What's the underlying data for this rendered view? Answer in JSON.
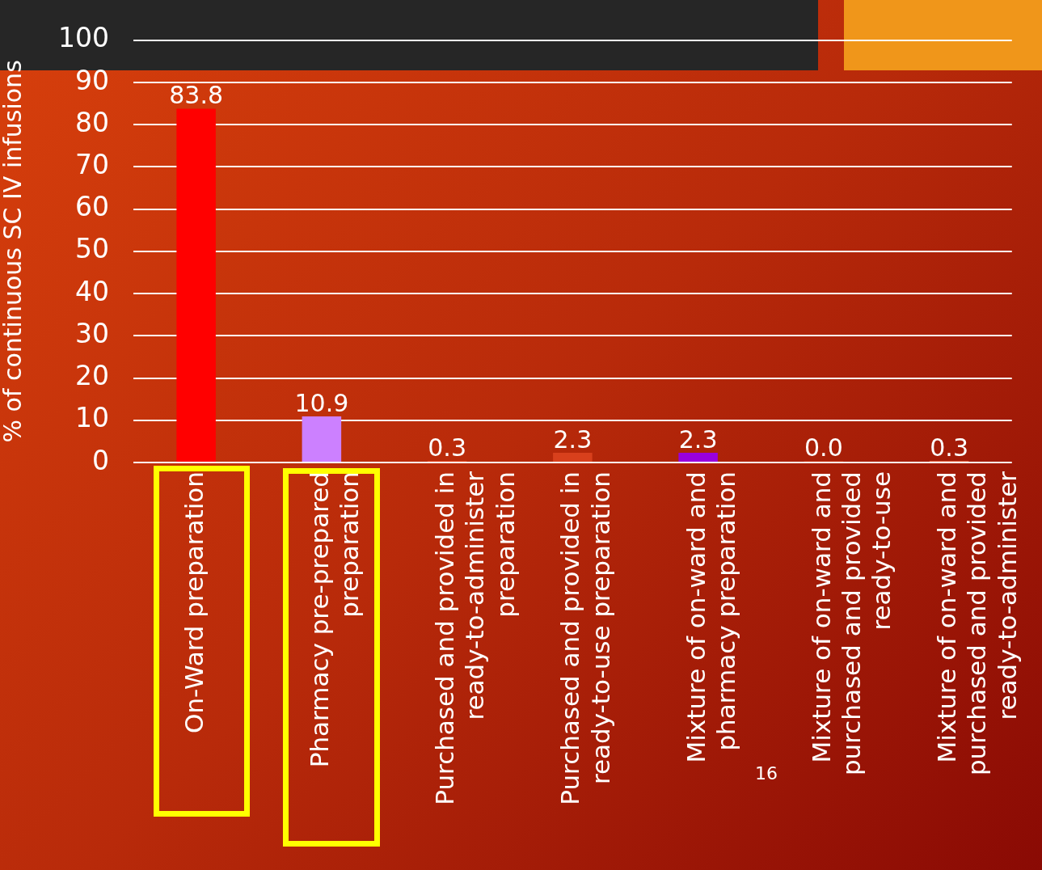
{
  "chart_data": {
    "type": "bar",
    "ylabel": "% of continuous SC IV infusions",
    "categories": [
      "On-Ward preparation",
      "Pharmacy pre-prepared preparation",
      "Purchased and provided in ready-to-administer preparation",
      "Purchased and provided in ready-to-use preparation",
      "Mixture of on-ward and pharmacy preparation",
      "Mixture of on-ward and purchased and provided ready-to-use",
      "Mixture of on-ward and purchased and provided ready-to-administer"
    ],
    "values": [
      83.8,
      10.9,
      0.3,
      2.3,
      2.3,
      0.0,
      0.3
    ],
    "colors": [
      "#ff0000",
      "#cc80ff",
      "#e0401a",
      "#d8401c",
      "#9900dd",
      "#c03010",
      "#e06040"
    ],
    "value_labels": [
      "83.8",
      "10.9",
      "0.3",
      "2.3",
      "2.3",
      "0.0",
      "0.3"
    ],
    "ylim": [
      0,
      100
    ],
    "yticks": [
      0,
      10,
      20,
      30,
      40,
      50,
      60,
      70,
      80,
      90,
      100
    ],
    "grid": "y",
    "legend": false,
    "annotations": [
      "16"
    ]
  }
}
